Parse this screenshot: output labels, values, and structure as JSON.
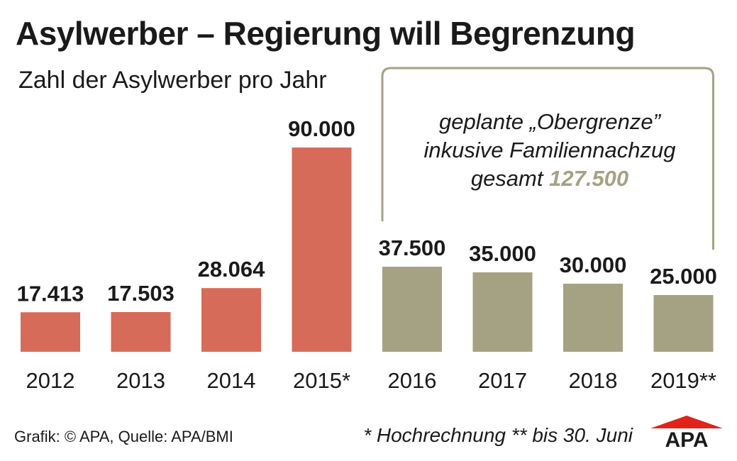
{
  "title": "Asylwerber – Regierung will Begrenzung",
  "subtitle": "Zahl der Asylwerber pro Jahr",
  "colors": {
    "actual": "#d66b59",
    "planned": "#a5a283",
    "text": "#1a1a1a",
    "logo_red": "#e2231a"
  },
  "annotation": {
    "line1": "geplante „Obergrenze”",
    "line2": "inkusive Familiennachzug",
    "line3_prefix": "gesamt ",
    "line3_value": "127.500"
  },
  "source": "Grafik: © APA, Quelle: APA/BMI",
  "footnote": "* Hochrechnung ** bis 30. Juni",
  "logo_text": "APA",
  "chart_data": {
    "type": "bar",
    "title": "Asylwerber – Regierung will Begrenzung",
    "subtitle": "Zahl der Asylwerber pro Jahr",
    "categories": [
      "2012",
      "2013",
      "2014",
      "2015*",
      "2016",
      "2017",
      "2018",
      "2019**"
    ],
    "values": [
      17413,
      17503,
      28064,
      90000,
      37500,
      35000,
      30000,
      25000
    ],
    "value_labels": [
      "17.413",
      "17.503",
      "28.064",
      "90.000",
      "37.500",
      "35.000",
      "30.000",
      "25.000"
    ],
    "status": [
      "actual",
      "actual",
      "actual",
      "actual",
      "planned",
      "planned",
      "planned",
      "planned"
    ],
    "xlabel": "",
    "ylabel": "",
    "ylim": [
      0,
      90000
    ],
    "grid": false,
    "bracket_total": 127500
  }
}
